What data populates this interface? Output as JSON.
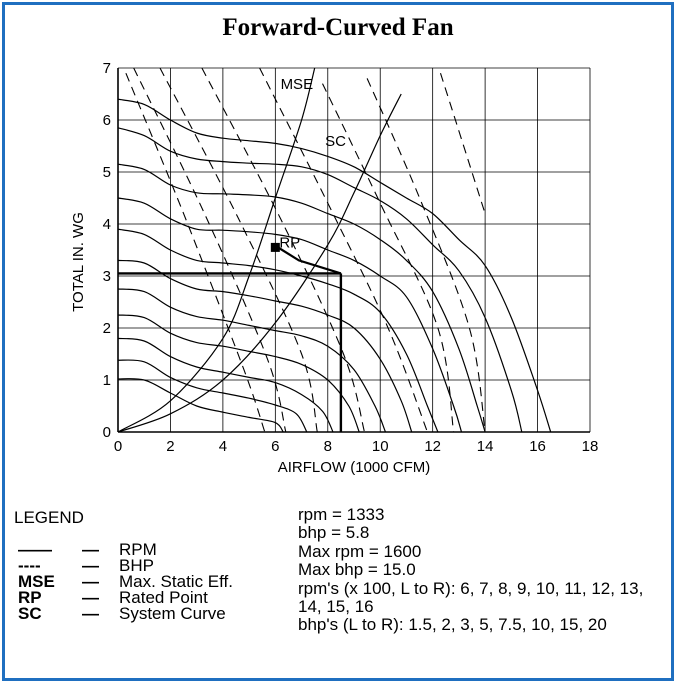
{
  "title": "Forward-Curved Fan",
  "chart_data": {
    "type": "line",
    "xlabel": "AIRFLOW (1000 CFM)",
    "ylabel": "TOTAL IN. WG",
    "xlim": [
      0,
      18
    ],
    "ylim": [
      0,
      7
    ],
    "xticks": [
      "0",
      "2",
      "4",
      "6",
      "8",
      "10",
      "12",
      "14",
      "16",
      "18"
    ],
    "yticks": [
      "0",
      "1",
      "2",
      "3",
      "4",
      "5",
      "6",
      "7"
    ],
    "grid": true,
    "rpm_series": [
      {
        "values": [
          [
            0,
            1.02
          ],
          [
            1,
            1.0
          ],
          [
            2,
            0.75
          ],
          [
            3,
            0.5
          ],
          [
            4,
            0.38
          ],
          [
            5,
            0.28
          ],
          [
            6,
            0.18
          ],
          [
            6.3,
            0.0
          ]
        ]
      },
      {
        "values": [
          [
            0,
            1.38
          ],
          [
            1,
            1.35
          ],
          [
            2,
            1.05
          ],
          [
            3,
            0.85
          ],
          [
            4,
            0.75
          ],
          [
            5,
            0.65
          ],
          [
            6,
            0.52
          ],
          [
            6.8,
            0.35
          ],
          [
            7.2,
            0.0
          ]
        ]
      },
      {
        "values": [
          [
            0,
            1.8
          ],
          [
            1,
            1.75
          ],
          [
            2,
            1.45
          ],
          [
            3,
            1.25
          ],
          [
            4,
            1.15
          ],
          [
            5,
            1.05
          ],
          [
            6,
            0.95
          ],
          [
            7,
            0.72
          ],
          [
            7.8,
            0.4
          ],
          [
            8.2,
            0.0
          ]
        ]
      },
      {
        "values": [
          [
            0,
            2.25
          ],
          [
            1,
            2.2
          ],
          [
            2,
            1.9
          ],
          [
            3,
            1.72
          ],
          [
            4,
            1.65
          ],
          [
            5,
            1.55
          ],
          [
            6,
            1.45
          ],
          [
            7,
            1.3
          ],
          [
            8,
            1.0
          ],
          [
            8.8,
            0.5
          ],
          [
            9.2,
            0.0
          ]
        ]
      },
      {
        "values": [
          [
            0,
            2.75
          ],
          [
            1,
            2.7
          ],
          [
            2,
            2.4
          ],
          [
            3,
            2.22
          ],
          [
            4,
            2.15
          ],
          [
            5,
            2.05
          ],
          [
            6,
            1.95
          ],
          [
            7,
            1.85
          ],
          [
            8,
            1.65
          ],
          [
            9,
            1.2
          ],
          [
            9.8,
            0.5
          ],
          [
            10.2,
            0.0
          ]
        ]
      },
      {
        "values": [
          [
            0,
            3.3
          ],
          [
            1,
            3.25
          ],
          [
            2,
            2.95
          ],
          [
            3,
            2.75
          ],
          [
            4,
            2.7
          ],
          [
            5,
            2.62
          ],
          [
            6,
            2.52
          ],
          [
            7,
            2.42
          ],
          [
            8,
            2.25
          ],
          [
            9,
            2.0
          ],
          [
            10,
            1.4
          ],
          [
            10.8,
            0.6
          ],
          [
            11.2,
            0.0
          ]
        ]
      },
      {
        "values": [
          [
            0,
            3.9
          ],
          [
            1,
            3.8
          ],
          [
            2,
            3.5
          ],
          [
            3,
            3.3
          ],
          [
            4,
            3.25
          ],
          [
            5,
            3.2
          ],
          [
            6,
            3.12
          ],
          [
            7,
            3.0
          ],
          [
            8,
            2.85
          ],
          [
            9,
            2.65
          ],
          [
            10,
            2.3
          ],
          [
            11,
            1.5
          ],
          [
            11.8,
            0.5
          ],
          [
            12.2,
            0.0
          ]
        ]
      },
      {
        "values": [
          [
            0,
            4.5
          ],
          [
            1,
            4.4
          ],
          [
            2,
            4.1
          ],
          [
            3,
            3.9
          ],
          [
            4,
            3.88
          ],
          [
            5,
            3.85
          ],
          [
            6,
            3.8
          ],
          [
            7,
            3.7
          ],
          [
            8,
            3.5
          ],
          [
            9,
            3.3
          ],
          [
            10,
            3.0
          ],
          [
            11,
            2.6
          ],
          [
            12,
            1.6
          ],
          [
            12.8,
            0.5
          ],
          [
            13.1,
            0.0
          ]
        ]
      },
      {
        "values": [
          [
            0,
            5.15
          ],
          [
            1,
            5.05
          ],
          [
            2,
            4.75
          ],
          [
            3,
            4.6
          ],
          [
            4,
            4.58
          ],
          [
            5,
            4.56
          ],
          [
            6,
            4.52
          ],
          [
            7,
            4.4
          ],
          [
            8,
            4.2
          ],
          [
            9,
            4.0
          ],
          [
            10,
            3.7
          ],
          [
            11,
            3.3
          ],
          [
            12,
            2.7
          ],
          [
            13,
            1.6
          ],
          [
            13.7,
            0.5
          ],
          [
            14.0,
            0.0
          ]
        ]
      },
      {
        "values": [
          [
            0,
            5.85
          ],
          [
            1,
            5.7
          ],
          [
            2,
            5.4
          ],
          [
            3,
            5.25
          ],
          [
            4,
            5.2
          ],
          [
            5,
            5.17
          ],
          [
            6,
            5.15
          ],
          [
            7,
            5.1
          ],
          [
            8,
            4.95
          ],
          [
            9,
            4.7
          ],
          [
            10,
            4.45
          ],
          [
            11,
            4.1
          ],
          [
            12,
            3.6
          ],
          [
            13,
            3.1
          ],
          [
            14,
            2.2
          ],
          [
            15,
            0.8
          ],
          [
            15.4,
            0.0
          ]
        ]
      },
      {
        "values": [
          [
            0,
            6.4
          ],
          [
            1,
            6.3
          ],
          [
            2,
            6.0
          ],
          [
            3,
            5.75
          ],
          [
            4,
            5.65
          ],
          [
            5,
            5.6
          ],
          [
            6,
            5.55
          ],
          [
            7,
            5.45
          ],
          [
            8,
            5.3
          ],
          [
            9,
            5.1
          ],
          [
            10,
            4.8
          ],
          [
            11,
            4.5
          ],
          [
            12,
            4.2
          ],
          [
            13,
            3.7
          ],
          [
            14,
            3.2
          ],
          [
            15,
            2.2
          ],
          [
            16,
            0.8
          ],
          [
            16.5,
            0.0
          ]
        ]
      }
    ],
    "bhp_series": [
      {
        "values": [
          [
            0.3,
            6.9
          ],
          [
            2.5,
            4.2
          ],
          [
            4.8,
            1.2
          ],
          [
            5.6,
            0.0
          ]
        ]
      },
      {
        "values": [
          [
            0.6,
            7.0
          ],
          [
            3.3,
            4.2
          ],
          [
            5.7,
            1.4
          ],
          [
            6.4,
            0.0
          ]
        ]
      },
      {
        "values": [
          [
            1.6,
            7.0
          ],
          [
            4.6,
            4.1
          ],
          [
            7.0,
            1.5
          ],
          [
            7.6,
            0.0
          ]
        ]
      },
      {
        "values": [
          [
            3.2,
            7.0
          ],
          [
            6.2,
            4.1
          ],
          [
            8.6,
            1.5
          ],
          [
            9.4,
            0.0
          ]
        ]
      },
      {
        "values": [
          [
            5.4,
            7.0
          ],
          [
            8.1,
            4.3
          ],
          [
            10.3,
            2.0
          ],
          [
            11.8,
            0.0
          ]
        ]
      },
      {
        "values": [
          [
            7.8,
            6.7
          ],
          [
            10.0,
            4.4
          ],
          [
            12.2,
            2.0
          ],
          [
            12.8,
            0.0
          ]
        ]
      },
      {
        "values": [
          [
            9.5,
            6.8
          ],
          [
            11.5,
            4.5
          ],
          [
            13.4,
            2.0
          ],
          [
            14.0,
            0.0
          ]
        ]
      },
      {
        "values": [
          [
            12.3,
            6.9
          ],
          [
            14.0,
            4.2
          ]
        ]
      }
    ],
    "mse": {
      "label": "MSE",
      "values": [
        [
          0,
          0
        ],
        [
          2,
          0.6
        ],
        [
          4,
          1.8
        ],
        [
          5,
          3.0
        ],
        [
          6,
          4.5
        ],
        [
          7,
          6.0
        ],
        [
          7.5,
          7.0
        ]
      ]
    },
    "system_curve": {
      "label": "SC",
      "values": [
        [
          0,
          0
        ],
        [
          2,
          0.35
        ],
        [
          4,
          1.0
        ],
        [
          6,
          2.1
        ],
        [
          8,
          3.6
        ],
        [
          9,
          4.6
        ],
        [
          10,
          5.7
        ],
        [
          10.8,
          6.5
        ]
      ]
    },
    "rated_point": {
      "label": "RP",
      "x": 6.0,
      "y": 3.55
    },
    "operating_lines": {
      "x": 8.5,
      "y": 3.05,
      "rp_connect": [
        [
          6.0,
          3.55
        ],
        [
          6.1,
          3.55
        ],
        [
          6.9,
          3.3
        ],
        [
          8.5,
          3.05
        ]
      ]
    }
  },
  "legend": {
    "title": "LEGEND",
    "items": [
      {
        "symbol": "——",
        "dash": "—",
        "text": "RPM"
      },
      {
        "symbol": "----",
        "dash": "—",
        "text": "BHP"
      },
      {
        "symbol": "MSE",
        "dash": "—",
        "text": "Max. Static Eff."
      },
      {
        "symbol": "RP",
        "dash": "—",
        "text": "Rated Point"
      },
      {
        "symbol": "SC",
        "dash": "—",
        "text": "System Curve"
      }
    ]
  },
  "notes": {
    "rpm": "rpm = 1333",
    "bhp": "bhp = 5.8",
    "max_rpm": "Max rpm = 1600",
    "max_bhp": "Max bhp = 15.0",
    "rpms": "rpm's (x 100, L to R): 6, 7, 8, 9, 10, 11, 12, 13, 14, 15, 16",
    "bhps": "bhp's (L to R): 1.5, 2, 3, 5, 7.5, 10, 15, 20"
  }
}
